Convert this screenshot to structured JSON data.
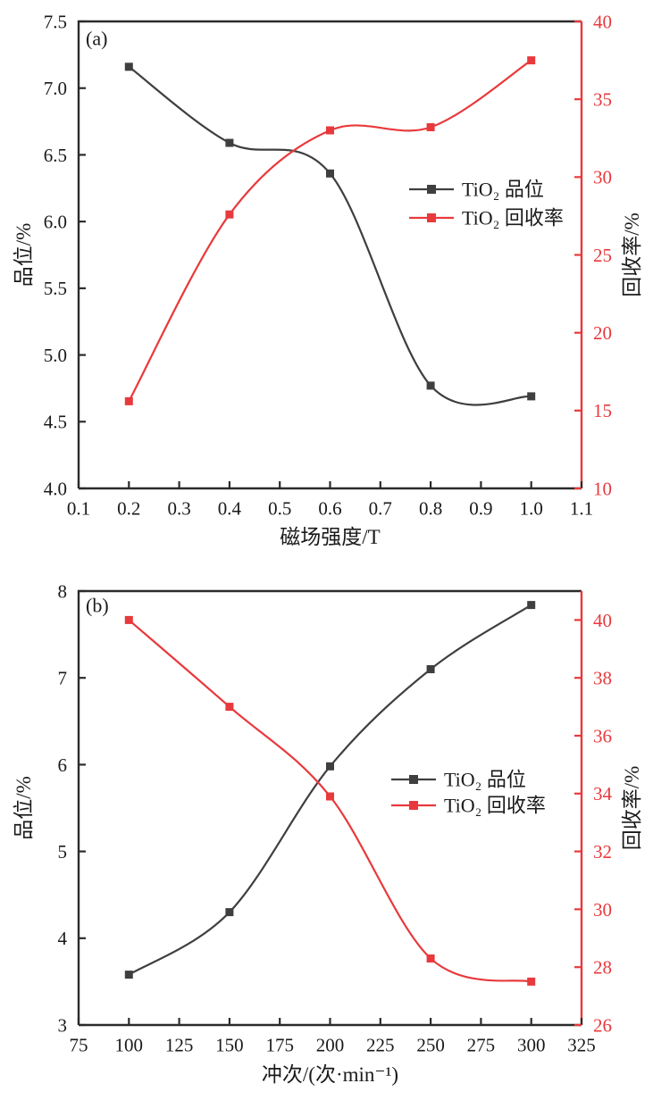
{
  "figure": {
    "background": "#ffffff",
    "frame_color": "#2b2b2b",
    "grade_color": "#3f3f3f",
    "recovery_color": "#e8393c",
    "right_axis_title_color": "#1a1a1a"
  },
  "chart_data": [
    {
      "type": "line",
      "panel_label": "(a)",
      "xlabel": "磁场强度/T",
      "ylabel_left": "品位/%",
      "ylabel_right": "回收率/%",
      "x_range": [
        0.1,
        1.1
      ],
      "left_range": [
        4.0,
        7.5
      ],
      "right_range": [
        10,
        40
      ],
      "x_tick_labels": [
        "0.1",
        "0.2",
        "0.3",
        "0.4",
        "0.5",
        "0.6",
        "0.7",
        "0.8",
        "0.9",
        "1.0",
        "1.1"
      ],
      "left_tick_labels": [
        "4.0",
        "4.5",
        "5.0",
        "5.5",
        "6.0",
        "6.5",
        "7.0",
        "7.5"
      ],
      "right_tick_labels": [
        "10",
        "15",
        "20",
        "25",
        "30",
        "35",
        "40"
      ],
      "x": [
        0.2,
        0.4,
        0.6,
        0.8,
        1.0
      ],
      "series": [
        {
          "name": "TiO₂ 品位",
          "axis": "left",
          "color": "#3f3f3f",
          "values": [
            7.16,
            6.59,
            6.36,
            4.77,
            4.69
          ]
        },
        {
          "name": "TiO₂ 回收率",
          "axis": "right",
          "color": "#e8393c",
          "values": [
            15.6,
            27.6,
            33.0,
            33.2,
            37.5
          ]
        }
      ],
      "legend_position": "center-right-inside",
      "grid": "off"
    },
    {
      "type": "line",
      "panel_label": "(b)",
      "xlabel": "冲次/(次·min⁻¹)",
      "ylabel_left": "品位/%",
      "ylabel_right": "回收率/%",
      "x_range": [
        75,
        325
      ],
      "left_range": [
        3,
        8
      ],
      "right_range": [
        26,
        41
      ],
      "x_tick_labels": [
        "75",
        "100",
        "125",
        "150",
        "175",
        "200",
        "225",
        "250",
        "275",
        "300",
        "325"
      ],
      "left_tick_labels": [
        "3",
        "4",
        "5",
        "6",
        "7",
        "8"
      ],
      "right_tick_labels": [
        "26",
        "28",
        "30",
        "32",
        "34",
        "36",
        "38",
        "40"
      ],
      "x": [
        100,
        150,
        200,
        250,
        300
      ],
      "series": [
        {
          "name": "TiO₂ 品位",
          "axis": "left",
          "color": "#3f3f3f",
          "values": [
            3.58,
            4.3,
            5.98,
            7.1,
            7.84
          ]
        },
        {
          "name": "TiO₂ 回收率",
          "axis": "right",
          "color": "#e8393c",
          "values": [
            40.0,
            37.0,
            33.9,
            28.3,
            27.5
          ]
        }
      ],
      "legend_position": "center-right-inside",
      "grid": "off"
    }
  ]
}
